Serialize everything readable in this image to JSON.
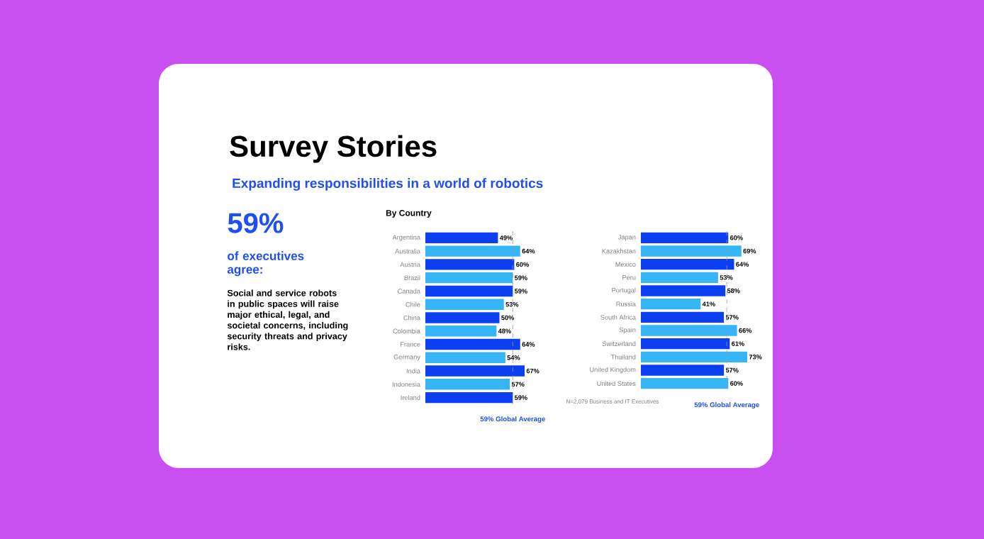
{
  "chart_data": [
    {
      "type": "other",
      "title": "Survey Stories",
      "subtitle": "Expanding responsibilities in a world of robotics",
      "annotations": [
        "59%",
        "of executives agree:",
        "Social and service robots in public spaces will raise major ethical, legal, and societal concerns, including security threats and privacy risks."
      ]
    },
    {
      "type": "bar",
      "orientation": "horizontal",
      "title": "By Country",
      "tick_labels": "y",
      "categories": [
        "Argentina",
        "Australia",
        "Austria",
        "Brazil",
        "Canada",
        "Chile",
        "China",
        "Colombia",
        "France",
        "Germany",
        "India",
        "Indonesia",
        "Ireland"
      ],
      "values": [
        49,
        64,
        60,
        59,
        59,
        53,
        50,
        48,
        64,
        54,
        67,
        57,
        59
      ],
      "value_labels": [
        "49%",
        "64%",
        "60%",
        "59%",
        "59%",
        "53%",
        "50%",
        "48%",
        "64%",
        "54%",
        "67%",
        "57%",
        "59%"
      ],
      "colors": [
        "#0b3ff0",
        "#35b4f6",
        "#0b3ff0",
        "#35b4f6",
        "#0b3ff0",
        "#35b4f6",
        "#0b3ff0",
        "#35b4f6",
        "#0b3ff0",
        "#35b4f6",
        "#0b3ff0",
        "#35b4f6",
        "#0b3ff0"
      ],
      "ref_lines": [
        {
          "axis": "x",
          "value": 59,
          "label": "59% Global Average",
          "color": "#9a9a9a",
          "line_style": "dashed"
        }
      ]
    },
    {
      "type": "bar",
      "orientation": "horizontal",
      "tick_labels": "y",
      "categories": [
        "Japan",
        "Kazakhstan",
        "Mexico",
        "Peru",
        "Portugal",
        "Russia",
        "South Africa",
        "Spain",
        "Switzerland",
        "Thailand",
        "United Kingdom",
        "United States"
      ],
      "values": [
        60,
        69,
        64,
        53,
        58,
        41,
        57,
        66,
        61,
        73,
        57,
        60
      ],
      "value_labels": [
        "60%",
        "69%",
        "64%",
        "53%",
        "58%",
        "41%",
        "57%",
        "66%",
        "61%",
        "73%",
        "57%",
        "60%"
      ],
      "colors": [
        "#0b3ff0",
        "#35b4f6",
        "#0b3ff0",
        "#35b4f6",
        "#0b3ff0",
        "#35b4f6",
        "#0b3ff0",
        "#35b4f6",
        "#0b3ff0",
        "#35b4f6",
        "#0b3ff0",
        "#35b4f6"
      ],
      "ref_lines": [
        {
          "axis": "x",
          "value": 59,
          "label": "59% Global Average",
          "color": "#9a9a9a",
          "line_style": "dashed"
        }
      ],
      "annotations": [
        "N=2,079 Business and IT Executives"
      ]
    }
  ]
}
